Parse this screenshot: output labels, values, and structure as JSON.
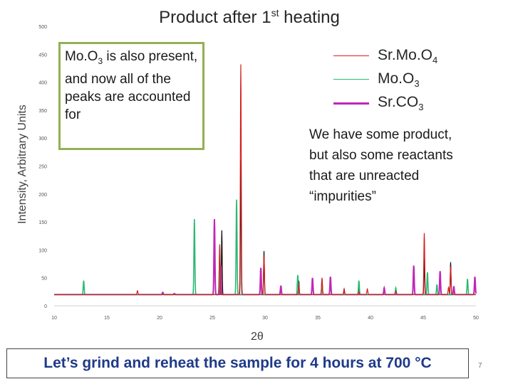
{
  "slide": {
    "title_main": "Product after 1",
    "title_sup": "st",
    "title_end": " heating",
    "note_left_1": "Mo.O",
    "note_left_sub": "3",
    "note_left_2": " is also present, and now all of the peaks are accounted for",
    "note_right": "We have some product, but also some reactants that are unreacted “impurities”",
    "footer": "Let’s grind and reheat the sample for 4 hours at 700 °C",
    "page_number": "7"
  },
  "legend": [
    {
      "label_main": "Sr.Mo.O",
      "label_sub": "4",
      "color": "#d42020"
    },
    {
      "label_main": "Mo.O",
      "label_sub": "3",
      "color": "#2ab873"
    },
    {
      "label_main": "Sr.CO",
      "label_sub": "3",
      "color": "#c026b8"
    }
  ],
  "chart_data": {
    "type": "line",
    "title": "Product after 1st heating",
    "xlabel": "2θ",
    "ylabel": "Intensity, Arbitrary Units",
    "xlim": [
      10,
      50
    ],
    "ylim": [
      0,
      500
    ],
    "x_ticks": [
      10,
      15,
      20,
      25,
      30,
      35,
      40,
      45,
      50
    ],
    "y_ticks": [
      0,
      50,
      100,
      150,
      200,
      250,
      300,
      350,
      400,
      450,
      500
    ],
    "grid": false,
    "baseline": 20,
    "series": [
      {
        "name": "Sr.Mo.O4",
        "color": "#d42020",
        "peaks": [
          [
            17.9,
            27
          ],
          [
            25.7,
            110
          ],
          [
            27.7,
            432
          ],
          [
            29.9,
            90
          ],
          [
            33.2,
            37
          ],
          [
            35.4,
            50
          ],
          [
            37.5,
            30
          ],
          [
            38.9,
            25
          ],
          [
            39.7,
            30
          ],
          [
            42.4,
            26
          ],
          [
            45.1,
            130
          ],
          [
            47.4,
            33
          ],
          [
            47.6,
            70
          ]
        ]
      },
      {
        "name": "Mo.O3",
        "color": "#2ab873",
        "peaks": [
          [
            12.8,
            45
          ],
          [
            23.3,
            155
          ],
          [
            25.7,
            92
          ],
          [
            27.3,
            190
          ],
          [
            33.1,
            55
          ],
          [
            35.4,
            34
          ],
          [
            38.9,
            45
          ],
          [
            42.4,
            32
          ],
          [
            45.4,
            60
          ],
          [
            46.3,
            38
          ],
          [
            49.2,
            48
          ]
        ]
      },
      {
        "name": "Sr.CO3",
        "color": "#c026b8",
        "peaks": [
          [
            20.3,
            24
          ],
          [
            21.4,
            22
          ],
          [
            25.2,
            155
          ],
          [
            25.8,
            72
          ],
          [
            29.6,
            68
          ],
          [
            31.5,
            36
          ],
          [
            34.5,
            50
          ],
          [
            36.2,
            52
          ],
          [
            41.3,
            32
          ],
          [
            44.1,
            72
          ],
          [
            46.6,
            62
          ],
          [
            47.9,
            35
          ],
          [
            49.9,
            52
          ]
        ]
      }
    ]
  }
}
